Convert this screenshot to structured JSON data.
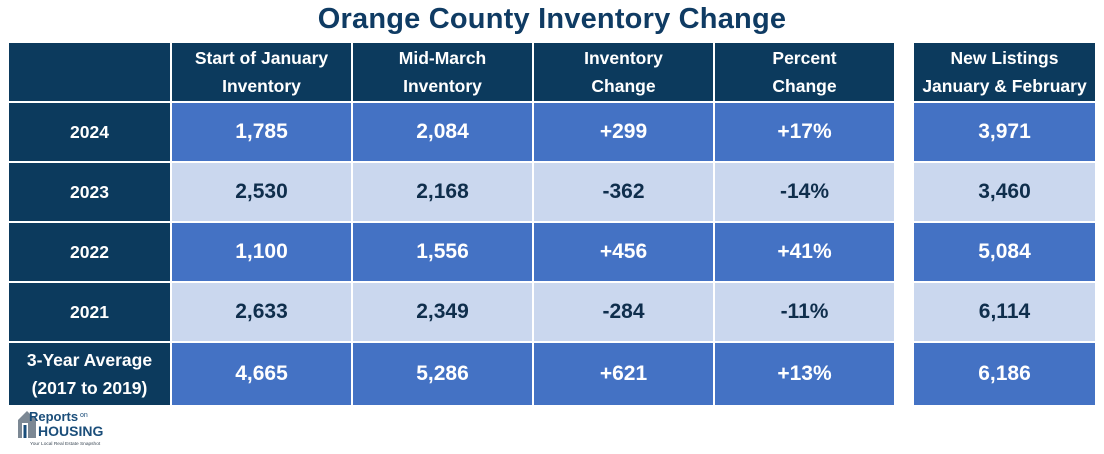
{
  "title": "Orange County Inventory Change",
  "chart_data": {
    "type": "table",
    "title": "Orange County Inventory Change",
    "columns": [
      "",
      "Start of January Inventory",
      "Mid-March Inventory",
      "Inventory Change",
      "Percent Change",
      "New Listings January & February"
    ],
    "header_lines": [
      [
        ""
      ],
      [
        "Start of January",
        "Inventory"
      ],
      [
        "Mid-March",
        "Inventory"
      ],
      [
        "Inventory",
        "Change"
      ],
      [
        "Percent",
        "Change"
      ],
      [
        "New Listings",
        "January & February"
      ]
    ],
    "rows": [
      {
        "label": [
          "2024"
        ],
        "values": [
          "1,785",
          "2,084",
          "+299",
          "+17%",
          "3,971"
        ]
      },
      {
        "label": [
          "2023"
        ],
        "values": [
          "2,530",
          "2,168",
          "-362",
          "-14%",
          "3,460"
        ]
      },
      {
        "label": [
          "2022"
        ],
        "values": [
          "1,100",
          "1,556",
          "+456",
          "+41%",
          "5,084"
        ]
      },
      {
        "label": [
          "2021"
        ],
        "values": [
          "2,633",
          "2,349",
          "-284",
          "-11%",
          "6,114"
        ]
      },
      {
        "label": [
          "3-Year Average",
          "(2017 to 2019)"
        ],
        "values": [
          "4,665",
          "5,286",
          "+621",
          "+13%",
          "6,186"
        ]
      }
    ]
  },
  "logo": {
    "line1": "Reports",
    "line1_small": "on",
    "line2": "HOUSING",
    "tagline": "Your Local Real Estate Snapshot"
  },
  "colors": {
    "title": "#0f3b63",
    "header_bg": "#0c3a5d",
    "dark_row": "#4472c4",
    "light_row": "#cad7ee"
  }
}
